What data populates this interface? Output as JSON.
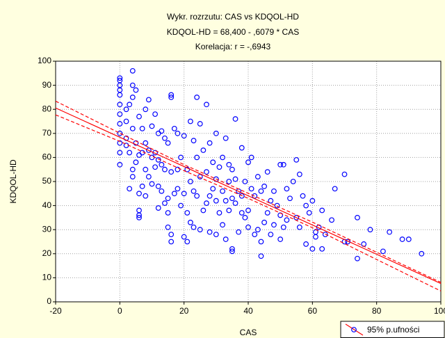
{
  "chart_data": {
    "type": "scatter",
    "title": "Wykr. rozrzutu: CAS vs KDQOL-HD",
    "subtitle": "KDQOL-HD = 68,400 - ,6079  * CAS",
    "annotation": "Korelacja: r =   -,6943",
    "x_label": "CAS",
    "y_label": "KDQOL-HD",
    "xlim": [
      -20,
      100
    ],
    "ylim": [
      0,
      100
    ],
    "xticks": [
      -20,
      0,
      20,
      40,
      60,
      80,
      100
    ],
    "yticks": [
      0,
      10,
      20,
      30,
      40,
      50,
      60,
      70,
      80,
      90,
      100
    ],
    "grid": true,
    "legend": "lower-right",
    "series": [
      {
        "name": "95% p.ufności",
        "color": "#0000ff",
        "x": [
          0,
          0,
          0,
          0,
          0,
          0,
          0,
          0,
          0,
          0,
          0,
          0,
          2,
          2,
          2,
          2,
          3,
          3,
          3,
          4,
          4,
          4,
          4,
          4,
          4,
          5,
          5,
          5,
          6,
          6,
          6,
          6,
          6,
          6,
          7,
          7,
          7,
          8,
          8,
          8,
          8,
          9,
          9,
          9,
          10,
          10,
          10,
          11,
          11,
          11,
          12,
          12,
          12,
          12,
          13,
          13,
          13,
          14,
          14,
          14,
          15,
          15,
          15,
          15,
          16,
          16,
          16,
          16,
          16,
          17,
          17,
          18,
          18,
          18,
          19,
          19,
          20,
          20,
          20,
          21,
          21,
          21,
          22,
          22,
          22,
          23,
          23,
          23,
          24,
          24,
          24,
          25,
          25,
          25,
          26,
          26,
          27,
          27,
          27,
          28,
          28,
          28,
          29,
          29,
          30,
          30,
          30,
          30,
          31,
          31,
          32,
          32,
          32,
          33,
          33,
          33,
          34,
          34,
          34,
          35,
          35,
          35,
          35,
          36,
          36,
          36,
          37,
          37,
          38,
          38,
          38,
          39,
          39,
          40,
          40,
          40,
          41,
          41,
          42,
          42,
          43,
          43,
          44,
          44,
          44,
          45,
          45,
          46,
          46,
          47,
          47,
          48,
          48,
          49,
          50,
          50,
          50,
          51,
          51,
          52,
          52,
          53,
          54,
          55,
          55,
          56,
          56,
          57,
          58,
          58,
          59,
          60,
          60,
          61,
          61,
          62,
          63,
          63,
          64,
          66,
          67,
          70,
          70,
          71,
          74,
          74,
          76,
          78,
          82,
          84,
          88,
          90,
          94
        ],
        "values": [
          57,
          62,
          66,
          70,
          74,
          78,
          82,
          86,
          88,
          90,
          92,
          93,
          68,
          75,
          80,
          65,
          47,
          62,
          82,
          96,
          90,
          85,
          55,
          52,
          72,
          88,
          58,
          66,
          36,
          35,
          38,
          45,
          61,
          77,
          62,
          72,
          48,
          80,
          66,
          55,
          44,
          84,
          63,
          52,
          73,
          60,
          49,
          78,
          62,
          56,
          39,
          70,
          48,
          59,
          71,
          57,
          46,
          68,
          41,
          55,
          31,
          43,
          66,
          37,
          86,
          85,
          28,
          25,
          54,
          72,
          45,
          70,
          55,
          47,
          40,
          60,
          27,
          45,
          69,
          25,
          37,
          55,
          75,
          50,
          33,
          67,
          46,
          31,
          85,
          44,
          60,
          74,
          52,
          30,
          63,
          38,
          82,
          54,
          41,
          66,
          44,
          29,
          58,
          47,
          70,
          42,
          51,
          28,
          56,
          37,
          60,
          46,
          32,
          68,
          42,
          26,
          50,
          38,
          57,
          21,
          22,
          55,
          43,
          76,
          41,
          51,
          46,
          29,
          64,
          44,
          37,
          50,
          35,
          58,
          38,
          31,
          60,
          47,
          44,
          28,
          30,
          52,
          19,
          25,
          46,
          48,
          33,
          54,
          37,
          42,
          28,
          46,
          32,
          40,
          57,
          36,
          26,
          57,
          31,
          47,
          34,
          43,
          50,
          59,
          35,
          53,
          31,
          44,
          40,
          24,
          37,
          42,
          22,
          29,
          27,
          31,
          22,
          38,
          28,
          34,
          47,
          53,
          25,
          25,
          35,
          18,
          24,
          30,
          21,
          29,
          26,
          26,
          20
        ]
      }
    ],
    "fit": {
      "color": "#ff0000",
      "x": [
        -20,
        100
      ],
      "y": [
        80.56,
        7.61
      ]
    },
    "ci_upper": {
      "color": "#ff0000",
      "x": [
        -20,
        0,
        20,
        40,
        60,
        80,
        100
      ],
      "y": [
        83.4,
        70.1,
        57.0,
        45.1,
        33.1,
        20.6,
        8.1
      ]
    },
    "ci_lower": {
      "color": "#ff0000",
      "x": [
        -20,
        0,
        20,
        40,
        60,
        80,
        100
      ],
      "y": [
        77.7,
        66.7,
        54.5,
        43.0,
        30.8,
        17.6,
        4.5
      ]
    }
  }
}
